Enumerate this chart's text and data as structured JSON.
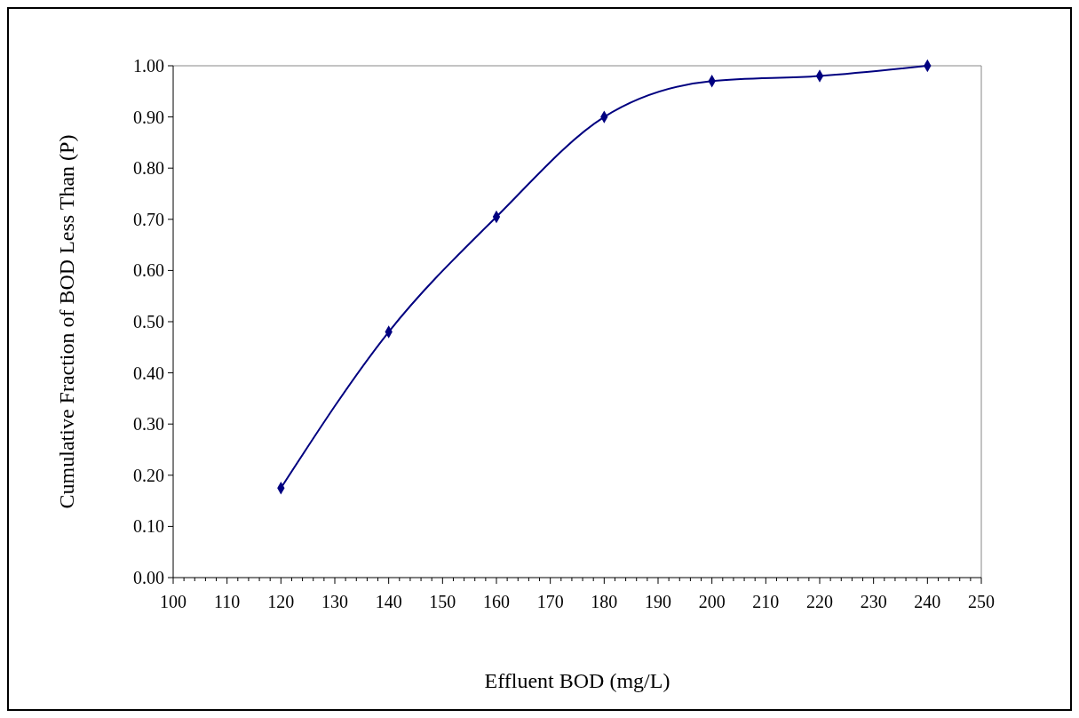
{
  "chart_data": {
    "type": "line",
    "xlabel": "Effluent BOD (mg/L)",
    "ylabel": "Cumulative Fraction of BOD Less Than (P)",
    "x": [
      120,
      140,
      160,
      180,
      200,
      220,
      240
    ],
    "series": [
      {
        "color": "#000080",
        "values": [
          0.175,
          0.48,
          0.705,
          0.9,
          0.97,
          0.98,
          1.0
        ]
      }
    ],
    "xlim": [
      100,
      250
    ],
    "xticks": [
      100,
      {
        "value": 102,
        "label": null
      },
      {
        "value": 104,
        "label": null
      },
      {
        "value": 106,
        "label": null
      },
      {
        "value": 108,
        "label": null
      },
      110,
      {
        "value": 112,
        "label": null
      },
      {
        "value": 114,
        "label": null
      },
      {
        "value": 116,
        "label": null
      },
      {
        "value": 118,
        "label": null
      },
      120,
      {
        "value": 122,
        "label": null
      },
      {
        "value": 124,
        "label": null
      },
      {
        "value": 126,
        "label": null
      },
      {
        "value": 128,
        "label": null
      },
      130,
      {
        "value": 132,
        "label": null
      },
      {
        "value": 134,
        "label": null
      },
      {
        "value": 136,
        "label": null
      },
      {
        "value": 138,
        "label": null
      },
      140,
      {
        "value": 142,
        "label": null
      },
      {
        "value": 144,
        "label": null
      },
      {
        "value": 146,
        "label": null
      },
      {
        "value": 148,
        "label": null
      },
      150,
      {
        "value": 152,
        "label": null
      },
      {
        "value": 154,
        "label": null
      },
      {
        "value": 156,
        "label": null
      },
      {
        "value": 158,
        "label": null
      },
      160,
      {
        "value": 162,
        "label": null
      },
      {
        "value": 164,
        "label": null
      },
      {
        "value": 166,
        "label": null
      },
      {
        "value": 168,
        "label": null
      },
      170,
      {
        "value": 172,
        "label": null
      },
      {
        "value": 174,
        "label": null
      },
      {
        "value": 176,
        "label": null
      },
      {
        "value": 178,
        "label": null
      },
      180,
      {
        "value": 182,
        "label": null
      },
      {
        "value": 184,
        "label": null
      },
      {
        "value": 186,
        "label": null
      },
      {
        "value": 188,
        "label": null
      },
      190,
      {
        "value": 192,
        "label": null
      },
      {
        "value": 194,
        "label": null
      },
      {
        "value": 196,
        "label": null
      },
      {
        "value": 198,
        "label": null
      },
      200,
      {
        "value": 202,
        "label": null
      },
      {
        "value": 204,
        "label": null
      },
      {
        "value": 206,
        "label": null
      },
      {
        "value": 208,
        "label": null
      },
      210,
      {
        "value": 212,
        "label": null
      },
      {
        "value": 214,
        "label": null
      },
      {
        "value": 216,
        "label": null
      },
      {
        "value": 218,
        "label": null
      },
      220,
      {
        "value": 222,
        "label": null
      },
      {
        "value": 224,
        "label": null
      },
      {
        "value": 226,
        "label": null
      },
      {
        "value": 228,
        "label": null
      },
      230,
      {
        "value": 232,
        "label": null
      },
      {
        "value": 234,
        "label": null
      },
      {
        "value": 236,
        "label": null
      },
      {
        "value": 238,
        "label": null
      },
      240,
      {
        "value": 242,
        "label": null
      },
      {
        "value": 244,
        "label": null
      },
      {
        "value": 246,
        "label": null
      },
      {
        "value": 248,
        "label": null
      },
      250
    ],
    "ylim": [
      0,
      1
    ],
    "yticks": [
      {
        "value": 0,
        "label": "0.00"
      },
      {
        "value": 0.1,
        "label": "0.10"
      },
      {
        "value": 0.2,
        "label": "0.20"
      },
      {
        "value": 0.3,
        "label": "0.30"
      },
      {
        "value": 0.4,
        "label": "0.40"
      },
      {
        "value": 0.5,
        "label": "0.50"
      },
      {
        "value": 0.6,
        "label": "0.60"
      },
      {
        "value": 0.7,
        "label": "0.70"
      },
      {
        "value": 0.8,
        "label": "0.80"
      },
      {
        "value": 0.9,
        "label": "0.90"
      },
      {
        "value": 1,
        "label": "1.00"
      }
    ],
    "marker": "diamond",
    "line_style": "solid"
  }
}
